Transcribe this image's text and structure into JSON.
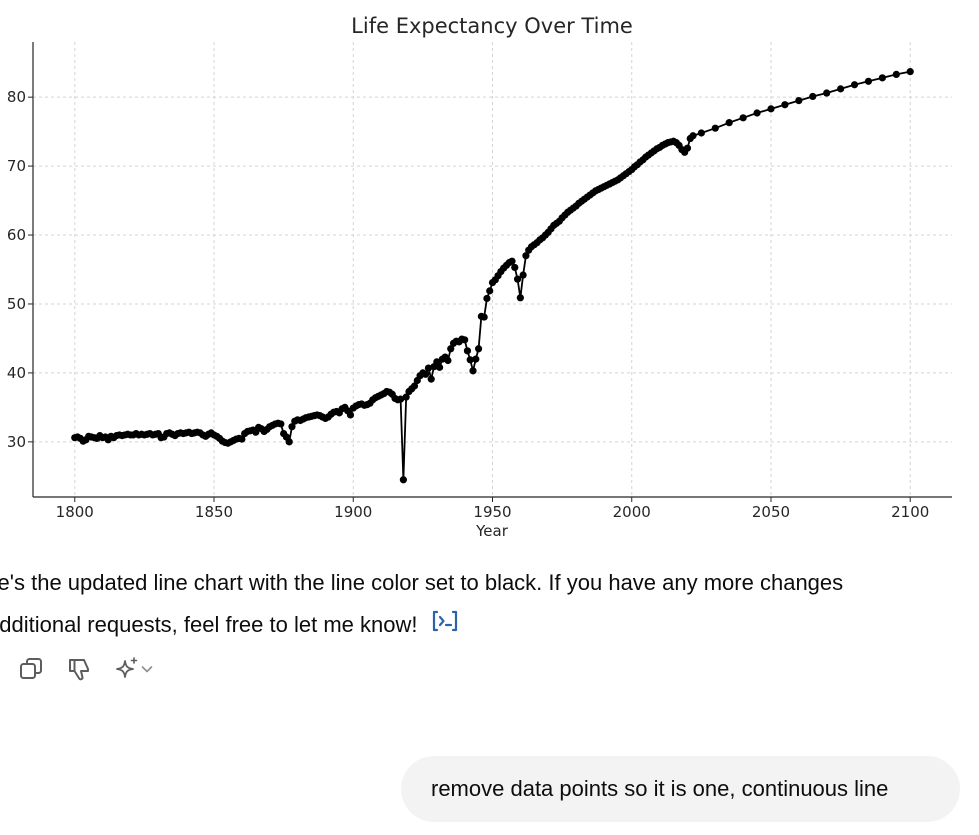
{
  "chart_data": {
    "type": "line",
    "title": "Life Expectancy Over Time",
    "xlabel": "Year",
    "ylabel": "",
    "xlim": [
      1785,
      2115
    ],
    "ylim": [
      22,
      88
    ],
    "xticks": [
      1800,
      1850,
      1900,
      1950,
      2000,
      2050,
      2100
    ],
    "yticks": [
      30,
      40,
      50,
      60,
      70,
      80
    ],
    "grid": true,
    "line_color": "#000000",
    "markers": true,
    "series": [
      {
        "points": [
          [
            1800,
            30.6
          ],
          [
            1801,
            30.7
          ],
          [
            1802,
            30.5
          ],
          [
            1803,
            30.1
          ],
          [
            1804,
            30.3
          ],
          [
            1805,
            30.8
          ],
          [
            1806,
            30.7
          ],
          [
            1807,
            30.6
          ],
          [
            1808,
            30.5
          ],
          [
            1809,
            30.9
          ],
          [
            1810,
            30.6
          ],
          [
            1811,
            30.7
          ],
          [
            1812,
            30.3
          ],
          [
            1813,
            30.8
          ],
          [
            1814,
            30.6
          ],
          [
            1815,
            30.9
          ],
          [
            1816,
            31.0
          ],
          [
            1817,
            30.9
          ],
          [
            1818,
            31.0
          ],
          [
            1819,
            31.1
          ],
          [
            1820,
            31.0
          ],
          [
            1821,
            31.0
          ],
          [
            1822,
            31.2
          ],
          [
            1823,
            31.0
          ],
          [
            1824,
            31.1
          ],
          [
            1825,
            31.0
          ],
          [
            1826,
            31.1
          ],
          [
            1827,
            31.2
          ],
          [
            1828,
            31.0
          ],
          [
            1829,
            31.1
          ],
          [
            1830,
            31.2
          ],
          [
            1831,
            30.6
          ],
          [
            1832,
            30.7
          ],
          [
            1833,
            31.2
          ],
          [
            1834,
            31.3
          ],
          [
            1835,
            31.1
          ],
          [
            1836,
            30.9
          ],
          [
            1837,
            31.2
          ],
          [
            1838,
            31.3
          ],
          [
            1839,
            31.2
          ],
          [
            1840,
            31.3
          ],
          [
            1841,
            31.4
          ],
          [
            1842,
            31.2
          ],
          [
            1843,
            31.3
          ],
          [
            1844,
            31.4
          ],
          [
            1845,
            31.3
          ],
          [
            1846,
            31.0
          ],
          [
            1847,
            30.8
          ],
          [
            1848,
            31.1
          ],
          [
            1849,
            31.3
          ],
          [
            1850,
            31.0
          ],
          [
            1851,
            30.8
          ],
          [
            1852,
            30.5
          ],
          [
            1853,
            30.1
          ],
          [
            1854,
            29.9
          ],
          [
            1855,
            29.8
          ],
          [
            1856,
            30.0
          ],
          [
            1857,
            30.2
          ],
          [
            1858,
            30.4
          ],
          [
            1859,
            30.5
          ],
          [
            1860,
            30.4
          ],
          [
            1861,
            31.2
          ],
          [
            1862,
            31.5
          ],
          [
            1863,
            31.6
          ],
          [
            1864,
            31.7
          ],
          [
            1865,
            31.4
          ],
          [
            1866,
            32.1
          ],
          [
            1867,
            31.9
          ],
          [
            1868,
            31.5
          ],
          [
            1869,
            31.8
          ],
          [
            1870,
            32.2
          ],
          [
            1871,
            32.4
          ],
          [
            1872,
            32.6
          ],
          [
            1873,
            32.7
          ],
          [
            1874,
            32.6
          ],
          [
            1875,
            31.2
          ],
          [
            1876,
            30.7
          ],
          [
            1877,
            30.0
          ],
          [
            1878,
            32.2
          ],
          [
            1879,
            33.0
          ],
          [
            1880,
            33.2
          ],
          [
            1881,
            33.1
          ],
          [
            1882,
            33.3
          ],
          [
            1883,
            33.5
          ],
          [
            1884,
            33.6
          ],
          [
            1885,
            33.7
          ],
          [
            1886,
            33.8
          ],
          [
            1887,
            33.9
          ],
          [
            1888,
            33.8
          ],
          [
            1889,
            33.6
          ],
          [
            1890,
            33.4
          ],
          [
            1891,
            33.6
          ],
          [
            1892,
            34.0
          ],
          [
            1893,
            34.3
          ],
          [
            1894,
            34.4
          ],
          [
            1895,
            34.2
          ],
          [
            1896,
            34.8
          ],
          [
            1897,
            35.0
          ],
          [
            1898,
            34.5
          ],
          [
            1899,
            33.9
          ],
          [
            1900,
            34.9
          ],
          [
            1901,
            35.2
          ],
          [
            1902,
            35.4
          ],
          [
            1903,
            35.5
          ],
          [
            1904,
            35.3
          ],
          [
            1905,
            35.4
          ],
          [
            1906,
            35.6
          ],
          [
            1907,
            36.1
          ],
          [
            1908,
            36.4
          ],
          [
            1909,
            36.6
          ],
          [
            1910,
            36.8
          ],
          [
            1911,
            37.0
          ],
          [
            1912,
            37.3
          ],
          [
            1913,
            37.2
          ],
          [
            1914,
            36.9
          ],
          [
            1915,
            36.3
          ],
          [
            1916,
            36.1
          ],
          [
            1917,
            36.2
          ],
          [
            1918,
            24.5
          ],
          [
            1919,
            36.5
          ],
          [
            1920,
            37.3
          ],
          [
            1921,
            37.7
          ],
          [
            1922,
            38.1
          ],
          [
            1923,
            38.9
          ],
          [
            1924,
            39.6
          ],
          [
            1925,
            40.0
          ],
          [
            1926,
            39.8
          ],
          [
            1927,
            40.7
          ],
          [
            1928,
            39.1
          ],
          [
            1929,
            40.9
          ],
          [
            1930,
            41.6
          ],
          [
            1931,
            40.8
          ],
          [
            1932,
            42.0
          ],
          [
            1933,
            42.3
          ],
          [
            1934,
            41.8
          ],
          [
            1935,
            43.5
          ],
          [
            1936,
            44.3
          ],
          [
            1937,
            44.6
          ],
          [
            1938,
            44.5
          ],
          [
            1939,
            44.9
          ],
          [
            1940,
            44.8
          ],
          [
            1941,
            43.2
          ],
          [
            1942,
            41.9
          ],
          [
            1943,
            40.3
          ],
          [
            1944,
            42.0
          ],
          [
            1945,
            43.5
          ],
          [
            1946,
            48.2
          ],
          [
            1947,
            48.1
          ],
          [
            1948,
            50.8
          ],
          [
            1949,
            51.9
          ],
          [
            1950,
            53.1
          ],
          [
            1951,
            53.5
          ],
          [
            1952,
            54.1
          ],
          [
            1953,
            54.7
          ],
          [
            1954,
            55.2
          ],
          [
            1955,
            55.6
          ],
          [
            1956,
            56.0
          ],
          [
            1957,
            56.2
          ],
          [
            1958,
            55.3
          ],
          [
            1959,
            53.6
          ],
          [
            1960,
            50.9
          ],
          [
            1961,
            54.2
          ],
          [
            1962,
            57.0
          ],
          [
            1963,
            57.8
          ],
          [
            1964,
            58.3
          ],
          [
            1965,
            58.6
          ],
          [
            1966,
            58.9
          ],
          [
            1967,
            59.3
          ],
          [
            1968,
            59.6
          ],
          [
            1969,
            60.0
          ],
          [
            1970,
            60.4
          ],
          [
            1971,
            60.9
          ],
          [
            1972,
            61.4
          ],
          [
            1973,
            61.7
          ],
          [
            1974,
            62.0
          ],
          [
            1975,
            62.5
          ],
          [
            1976,
            62.9
          ],
          [
            1977,
            63.3
          ],
          [
            1978,
            63.6
          ],
          [
            1979,
            63.9
          ],
          [
            1980,
            64.2
          ],
          [
            1981,
            64.6
          ],
          [
            1982,
            64.9
          ],
          [
            1983,
            65.2
          ],
          [
            1984,
            65.5
          ],
          [
            1985,
            65.8
          ],
          [
            1986,
            66.1
          ],
          [
            1987,
            66.4
          ],
          [
            1988,
            66.6
          ],
          [
            1989,
            66.8
          ],
          [
            1990,
            67.0
          ],
          [
            1991,
            67.2
          ],
          [
            1992,
            67.4
          ],
          [
            1993,
            67.6
          ],
          [
            1994,
            67.8
          ],
          [
            1995,
            68.0
          ],
          [
            1996,
            68.3
          ],
          [
            1997,
            68.6
          ],
          [
            1998,
            68.9
          ],
          [
            1999,
            69.2
          ],
          [
            2000,
            69.5
          ],
          [
            2001,
            69.9
          ],
          [
            2002,
            70.2
          ],
          [
            2003,
            70.6
          ],
          [
            2004,
            70.9
          ],
          [
            2005,
            71.3
          ],
          [
            2006,
            71.6
          ],
          [
            2007,
            71.9
          ],
          [
            2008,
            72.2
          ],
          [
            2009,
            72.5
          ],
          [
            2010,
            72.7
          ],
          [
            2011,
            73.0
          ],
          [
            2012,
            73.2
          ],
          [
            2013,
            73.4
          ],
          [
            2014,
            73.5
          ],
          [
            2015,
            73.6
          ],
          [
            2016,
            73.4
          ],
          [
            2017,
            73.0
          ],
          [
            2018,
            72.4
          ],
          [
            2019,
            72.0
          ],
          [
            2020,
            72.6
          ],
          [
            2021,
            74.0
          ],
          [
            2022,
            74.4
          ],
          [
            2025,
            74.8
          ],
          [
            2030,
            75.5
          ],
          [
            2035,
            76.3
          ],
          [
            2040,
            77.0
          ],
          [
            2045,
            77.7
          ],
          [
            2050,
            78.3
          ],
          [
            2055,
            78.9
          ],
          [
            2060,
            79.5
          ],
          [
            2065,
            80.1
          ],
          [
            2070,
            80.6
          ],
          [
            2075,
            81.2
          ],
          [
            2080,
            81.8
          ],
          [
            2085,
            82.3
          ],
          [
            2090,
            82.8
          ],
          [
            2095,
            83.3
          ],
          [
            2100,
            83.7
          ]
        ]
      }
    ]
  },
  "message": {
    "line1": "ere's the updated line chart with the line color set to black. If you have any more changes",
    "line2": "additional requests, feel free to let me know!",
    "code_icon": "code-interpreter-icon"
  },
  "actions": {
    "copy_icon": "copy-icon",
    "dislike_icon": "thumbs-down-icon",
    "regenerate_icon": "sparkle-icon",
    "dropdown_icon": "chevron-down-icon"
  },
  "user_message": {
    "text": "remove data points so it is one, continuous line"
  },
  "colors": {
    "user_bubble": "#f3f3f3",
    "code_icon": "#2964aa",
    "action_icon": "#5d5d5d"
  }
}
